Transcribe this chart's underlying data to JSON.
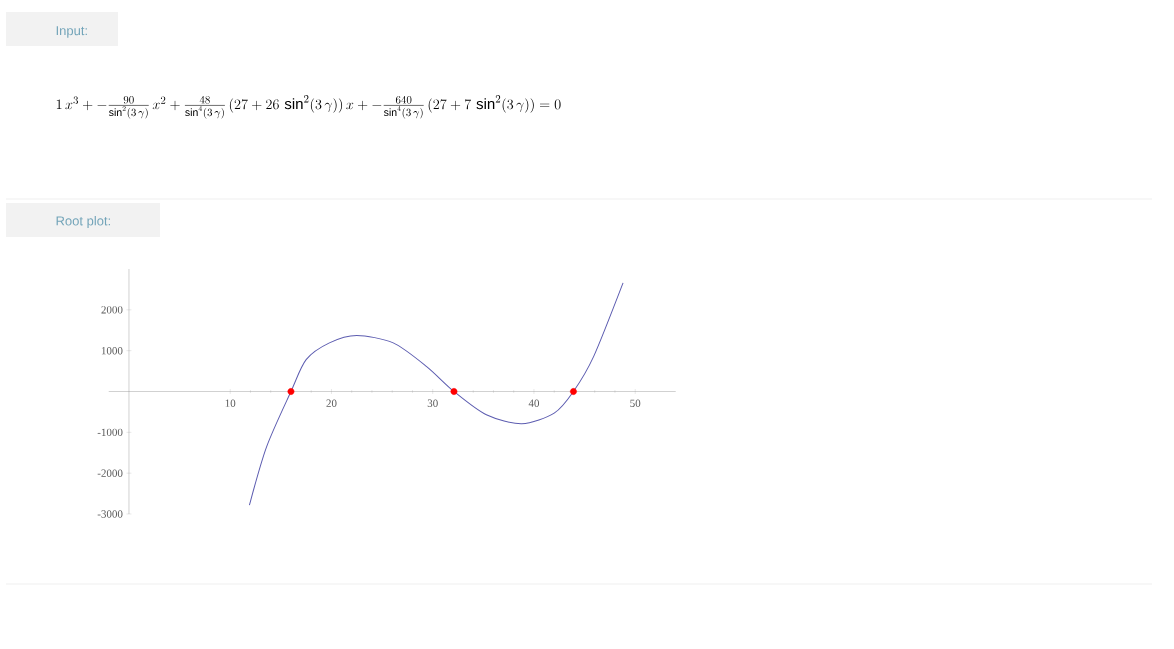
{
  "chart_data": {
    "type": "line",
    "title": "Root plot:",
    "annotations": [
      "Input:",
      "1\\,x^3 + -\\frac{90}{\\sin^2(3\\,\\gamma)}\\,x^2 + \\frac{48}{\\sin^4(3\\,\\gamma)}\\,(27+26\\,\\sin^2(3\\,\\gamma))\\,x + -\\frac{640}{\\sin^4(3\\,\\gamma)}\\,(27+7\\,\\sin^2(3\\,\\gamma)) = 0"
    ],
    "series": [
      {
        "color": "#5c5cb0",
        "x": [
          11.9,
          13.6,
          16.0,
          17.5,
          19.8,
          22.5,
          26.1,
          29.4,
          32.1,
          35.3,
          38.8,
          42.0,
          43.9,
          45.9,
          48.8
        ],
        "values": [
          -2780,
          -1350,
          0,
          780,
          1190,
          1370,
          1190,
          610,
          0,
          -570,
          -790,
          -530,
          0,
          860,
          2660
        ]
      },
      {
        "type": "scatter",
        "color": "#ff0000",
        "marker": "circle",
        "x": [
          16.0,
          32.1,
          43.9
        ],
        "values": [
          0,
          0,
          0
        ]
      }
    ],
    "xlim": [
      -2,
      54
    ],
    "ylim": [
      -3000,
      3000
    ],
    "xticks": [
      10,
      20,
      30,
      40,
      50
    ],
    "yticks": [
      -3000,
      -2000,
      -1000,
      1000,
      2000
    ]
  }
}
